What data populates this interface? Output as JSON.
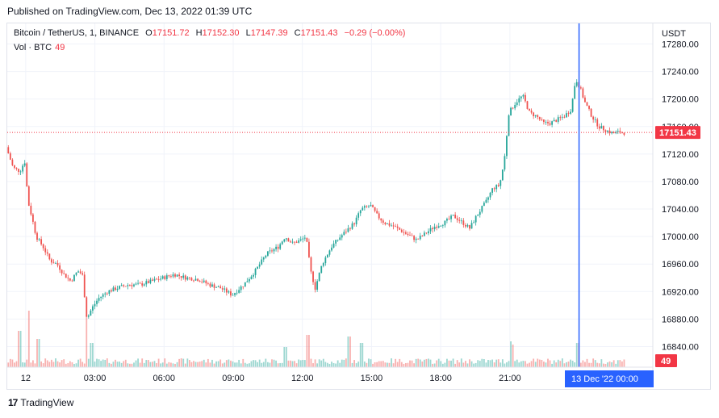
{
  "published": "Published on TradingView.com, Dec 13, 2022 01:39 UTC",
  "legend": {
    "symbol": "Bitcoin / TetherUS, 1, BINANCE",
    "o_label": "O",
    "o_value": "17151.72",
    "h_label": "H",
    "h_value": "17152.30",
    "l_label": "L",
    "l_value": "17147.39",
    "c_label": "C",
    "c_value": "17151.43",
    "change": "−0.29 (−0.00%)",
    "vol_label": "Vol · BTC",
    "vol_value": "49"
  },
  "footer": {
    "logo": "17",
    "brand": "TradingView"
  },
  "colors": {
    "up": "#26a69a",
    "down": "#ef5350",
    "crosshair": "#2962ff",
    "price_tag": "#f23645"
  },
  "chart_data": {
    "type": "candlestick",
    "symbol": "BTCUSDT",
    "interval": "1 minute",
    "currency": "USDT",
    "y_ticks": [
      17280,
      17240,
      17200,
      17160,
      17120,
      17080,
      17040,
      17000,
      16960,
      16920,
      16880,
      16840
    ],
    "y_tick_labels": [
      "17280.00",
      "17240.00",
      "17200.00",
      "17160.00",
      "17120.00",
      "17080.00",
      "17040.00",
      "17000.00",
      "16960.00",
      "16920.00",
      "16880.00",
      "16840.00"
    ],
    "ylim": [
      16810,
      17310
    ],
    "x_tick_labels": [
      "12",
      "03:00",
      "06:00",
      "09:00",
      "12:00",
      "15:00",
      "18:00",
      "21:00"
    ],
    "x_tick_hours": [
      0,
      3,
      6,
      9,
      12,
      15,
      18,
      21
    ],
    "xlim_hours": [
      -0.8,
      27.2
    ],
    "last_price": 17151.43,
    "last_price_label": "17151.43",
    "last_volume_label": "49",
    "crosshair_label": "13 Dec '22   00:00",
    "crosshair_hour": 24,
    "price_path": [
      {
        "t": -0.8,
        "p": 17130
      },
      {
        "t": -0.5,
        "p": 17100
      },
      {
        "t": -0.2,
        "p": 17095
      },
      {
        "t": 0.0,
        "p": 17110
      },
      {
        "t": 0.15,
        "p": 17050
      },
      {
        "t": 0.3,
        "p": 17030
      },
      {
        "t": 0.5,
        "p": 17000
      },
      {
        "t": 0.8,
        "p": 16985
      },
      {
        "t": 1.1,
        "p": 16965
      },
      {
        "t": 1.4,
        "p": 16960
      },
      {
        "t": 1.7,
        "p": 16945
      },
      {
        "t": 2.0,
        "p": 16935
      },
      {
        "t": 2.3,
        "p": 16950
      },
      {
        "t": 2.5,
        "p": 16945
      },
      {
        "t": 2.7,
        "p": 16880
      },
      {
        "t": 2.9,
        "p": 16895
      },
      {
        "t": 3.2,
        "p": 16910
      },
      {
        "t": 3.6,
        "p": 16920
      },
      {
        "t": 4.0,
        "p": 16925
      },
      {
        "t": 4.5,
        "p": 16930
      },
      {
        "t": 5.0,
        "p": 16930
      },
      {
        "t": 5.5,
        "p": 16935
      },
      {
        "t": 6.0,
        "p": 16940
      },
      {
        "t": 6.5,
        "p": 16945
      },
      {
        "t": 7.0,
        "p": 16940
      },
      {
        "t": 7.5,
        "p": 16938
      },
      {
        "t": 8.0,
        "p": 16930
      },
      {
        "t": 8.5,
        "p": 16925
      },
      {
        "t": 9.0,
        "p": 16915
      },
      {
        "t": 9.5,
        "p": 16930
      },
      {
        "t": 10.0,
        "p": 16950
      },
      {
        "t": 10.5,
        "p": 16975
      },
      {
        "t": 11.0,
        "p": 16985
      },
      {
        "t": 11.3,
        "p": 17000
      },
      {
        "t": 11.6,
        "p": 16990
      },
      {
        "t": 12.0,
        "p": 16995
      },
      {
        "t": 12.2,
        "p": 17000
      },
      {
        "t": 12.4,
        "p": 16950
      },
      {
        "t": 12.6,
        "p": 16925
      },
      {
        "t": 12.9,
        "p": 16960
      },
      {
        "t": 13.3,
        "p": 16985
      },
      {
        "t": 13.7,
        "p": 17000
      },
      {
        "t": 14.0,
        "p": 17010
      },
      {
        "t": 14.3,
        "p": 17020
      },
      {
        "t": 14.6,
        "p": 17040
      },
      {
        "t": 15.0,
        "p": 17045
      },
      {
        "t": 15.3,
        "p": 17030
      },
      {
        "t": 15.6,
        "p": 17020
      },
      {
        "t": 16.0,
        "p": 17015
      },
      {
        "t": 16.5,
        "p": 17005
      },
      {
        "t": 17.0,
        "p": 16995
      },
      {
        "t": 17.4,
        "p": 17005
      },
      {
        "t": 17.8,
        "p": 17015
      },
      {
        "t": 18.2,
        "p": 17020
      },
      {
        "t": 18.6,
        "p": 17030
      },
      {
        "t": 19.0,
        "p": 17020
      },
      {
        "t": 19.3,
        "p": 17012
      },
      {
        "t": 19.6,
        "p": 17030
      },
      {
        "t": 20.0,
        "p": 17050
      },
      {
        "t": 20.3,
        "p": 17070
      },
      {
        "t": 20.6,
        "p": 17075
      },
      {
        "t": 20.8,
        "p": 17110
      },
      {
        "t": 21.0,
        "p": 17180
      },
      {
        "t": 21.3,
        "p": 17195
      },
      {
        "t": 21.6,
        "p": 17205
      },
      {
        "t": 21.9,
        "p": 17180
      },
      {
        "t": 22.2,
        "p": 17175
      },
      {
        "t": 22.5,
        "p": 17165
      },
      {
        "t": 22.8,
        "p": 17165
      },
      {
        "t": 23.1,
        "p": 17170
      },
      {
        "t": 23.4,
        "p": 17175
      },
      {
        "t": 23.7,
        "p": 17185
      },
      {
        "t": 23.9,
        "p": 17230
      },
      {
        "t": 24.1,
        "p": 17215
      },
      {
        "t": 24.3,
        "p": 17195
      },
      {
        "t": 24.6,
        "p": 17175
      },
      {
        "t": 24.9,
        "p": 17160
      },
      {
        "t": 25.2,
        "p": 17155
      },
      {
        "t": 25.5,
        "p": 17150
      },
      {
        "t": 25.8,
        "p": 17152
      },
      {
        "t": 26.0,
        "p": 17151
      }
    ],
    "volume_spikes": [
      {
        "t": -0.3,
        "v": 45
      },
      {
        "t": 0.1,
        "v": 70
      },
      {
        "t": 0.5,
        "v": 35
      },
      {
        "t": 2.6,
        "v": 65
      },
      {
        "t": 2.8,
        "v": 30
      },
      {
        "t": 11.2,
        "v": 25
      },
      {
        "t": 12.2,
        "v": 40
      },
      {
        "t": 14.0,
        "v": 38
      },
      {
        "t": 14.5,
        "v": 30
      },
      {
        "t": 21.0,
        "v": 32
      },
      {
        "t": 21.1,
        "v": 28
      },
      {
        "t": 23.9,
        "v": 30
      }
    ]
  }
}
